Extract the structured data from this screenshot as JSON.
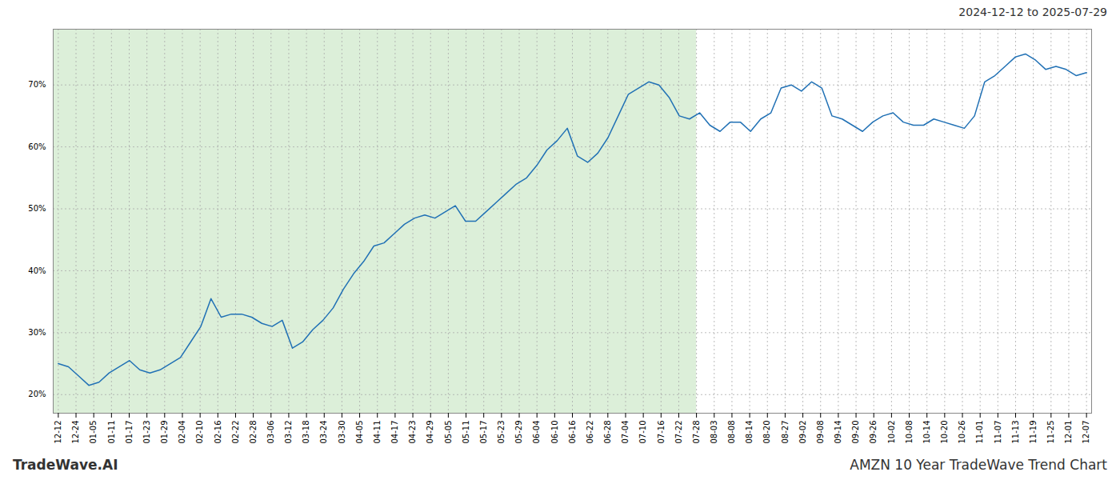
{
  "chart_data": {
    "type": "line",
    "title": "AMZN 10 Year TradeWave Trend Chart",
    "subtitle": "2024-12-12 to 2025-07-29",
    "annotations": [
      "TradeWave.AI"
    ],
    "color": "#2171b5",
    "grid": true,
    "x": [
      0,
      1,
      2,
      3,
      4,
      5,
      6,
      7,
      8,
      9,
      10,
      11,
      12,
      13,
      14,
      15,
      16,
      17,
      18,
      19,
      20,
      21,
      22,
      23,
      24,
      25,
      26,
      27,
      28,
      29,
      30,
      31,
      32,
      33,
      34,
      35,
      36,
      37,
      38,
      39,
      40,
      41,
      42,
      43,
      44,
      45,
      46,
      47,
      48,
      49,
      50,
      51,
      52,
      53,
      54,
      55,
      56,
      57,
      58,
      59,
      60,
      61,
      62,
      63,
      64,
      65,
      66,
      67,
      68,
      69,
      70,
      71,
      72,
      73,
      74,
      75,
      76,
      77,
      78,
      79,
      80,
      81,
      82,
      83,
      84,
      85,
      86,
      87,
      88,
      89,
      90,
      91,
      92,
      93,
      94,
      95,
      96,
      97,
      98,
      99,
      100,
      101
    ],
    "values": [
      25.0,
      24.5,
      23.0,
      21.5,
      22.0,
      23.5,
      24.5,
      25.5,
      24.0,
      23.5,
      24.0,
      25.0,
      26.0,
      28.5,
      31.0,
      35.5,
      32.5,
      33.0,
      33.0,
      32.5,
      31.5,
      31.0,
      32.0,
      27.5,
      28.5,
      30.5,
      32.0,
      34.0,
      37.0,
      39.5,
      41.5,
      44.0,
      44.5,
      46.0,
      47.5,
      48.5,
      49.0,
      48.5,
      49.5,
      50.5,
      48.0,
      48.0,
      49.5,
      51.0,
      52.5,
      54.0,
      55.0,
      57.0,
      59.5,
      61.0,
      63.0,
      58.5,
      57.5,
      59.0,
      61.5,
      65.0,
      68.5,
      69.5,
      70.5,
      70.0,
      68.0,
      65.0,
      64.5,
      65.5,
      63.5,
      62.5,
      64.0,
      64.0,
      62.5,
      64.5,
      65.5,
      69.5,
      70.0,
      69.0,
      70.5,
      69.5,
      65.0,
      64.5,
      63.5,
      62.5,
      64.0,
      65.0,
      65.5,
      64.0,
      63.5,
      63.5,
      64.5,
      64.0,
      63.5,
      63.0,
      65.0,
      70.5,
      71.5,
      73.0,
      74.5,
      75.0,
      74.0,
      72.5,
      73.0,
      72.5,
      71.5,
      72.0
    ],
    "xlim": [
      -0.5,
      101.5
    ],
    "xticks": [
      {
        "value": 0,
        "label": "12-12"
      },
      {
        "value": 1.741379,
        "label": "12-24"
      },
      {
        "value": 3.482759,
        "label": "01-05"
      },
      {
        "value": 5.224138,
        "label": "01-11"
      },
      {
        "value": 6.965517,
        "label": "01-17"
      },
      {
        "value": 8.706897,
        "label": "01-23"
      },
      {
        "value": 10.448276,
        "label": "01-29"
      },
      {
        "value": 12.189655,
        "label": "02-04"
      },
      {
        "value": 13.931034,
        "label": "02-10"
      },
      {
        "value": 15.672414,
        "label": "02-16"
      },
      {
        "value": 17.413793,
        "label": "02-22"
      },
      {
        "value": 19.155172,
        "label": "02-28"
      },
      {
        "value": 20.896552,
        "label": "03-06"
      },
      {
        "value": 22.637931,
        "label": "03-12"
      },
      {
        "value": 24.37931,
        "label": "03-18"
      },
      {
        "value": 26.12069,
        "label": "03-24"
      },
      {
        "value": 27.862069,
        "label": "03-30"
      },
      {
        "value": 29.603448,
        "label": "04-05"
      },
      {
        "value": 31.344828,
        "label": "04-11"
      },
      {
        "value": 33.086207,
        "label": "04-17"
      },
      {
        "value": 34.827586,
        "label": "04-23"
      },
      {
        "value": 36.568966,
        "label": "04-29"
      },
      {
        "value": 38.310345,
        "label": "05-05"
      },
      {
        "value": 40.051724,
        "label": "05-11"
      },
      {
        "value": 41.793103,
        "label": "05-17"
      },
      {
        "value": 43.534483,
        "label": "05-23"
      },
      {
        "value": 45.275862,
        "label": "05-29"
      },
      {
        "value": 47.017241,
        "label": "06-04"
      },
      {
        "value": 48.758621,
        "label": "06-10"
      },
      {
        "value": 50.5,
        "label": "06-16"
      },
      {
        "value": 52.241379,
        "label": "06-22"
      },
      {
        "value": 53.982759,
        "label": "06-28"
      },
      {
        "value": 55.724138,
        "label": "07-04"
      },
      {
        "value": 57.465517,
        "label": "07-10"
      },
      {
        "value": 59.206897,
        "label": "07-16"
      },
      {
        "value": 60.948276,
        "label": "07-22"
      },
      {
        "value": 62.689655,
        "label": "07-28"
      },
      {
        "value": 64.431034,
        "label": "08-03"
      },
      {
        "value": 66.172414,
        "label": "08-08"
      },
      {
        "value": 67.913793,
        "label": "08-14"
      },
      {
        "value": 69.655172,
        "label": "08-20"
      },
      {
        "value": 71.396552,
        "label": "08-27"
      },
      {
        "value": 73.137931,
        "label": "09-02"
      },
      {
        "value": 74.87931,
        "label": "09-08"
      },
      {
        "value": 76.62069,
        "label": "09-14"
      },
      {
        "value": 78.362069,
        "label": "09-20"
      },
      {
        "value": 80.103448,
        "label": "09-26"
      },
      {
        "value": 81.844828,
        "label": "10-02"
      },
      {
        "value": 83.586207,
        "label": "10-08"
      },
      {
        "value": 85.327586,
        "label": "10-14"
      },
      {
        "value": 87.068966,
        "label": "10-20"
      },
      {
        "value": 88.810345,
        "label": "10-26"
      },
      {
        "value": 90.551724,
        "label": "11-01"
      },
      {
        "value": 92.293103,
        "label": "11-07"
      },
      {
        "value": 94.034483,
        "label": "11-13"
      },
      {
        "value": 95.775862,
        "label": "11-19"
      },
      {
        "value": 97.517241,
        "label": "11-25"
      },
      {
        "value": 99.258621,
        "label": "12-01"
      },
      {
        "value": 101,
        "label": "12-07"
      }
    ],
    "ylim": [
      17,
      79
    ],
    "yticks": [
      {
        "value": 20,
        "label": "20%"
      },
      {
        "value": 30,
        "label": "30%"
      },
      {
        "value": 40,
        "label": "40%"
      },
      {
        "value": 50,
        "label": "50%"
      },
      {
        "value": 60,
        "label": "60%"
      },
      {
        "value": 70,
        "label": "70%"
      }
    ],
    "shaded_region": {
      "x_start": -0.5,
      "x_end": 62.689655,
      "color": "#d6ecd2"
    }
  }
}
